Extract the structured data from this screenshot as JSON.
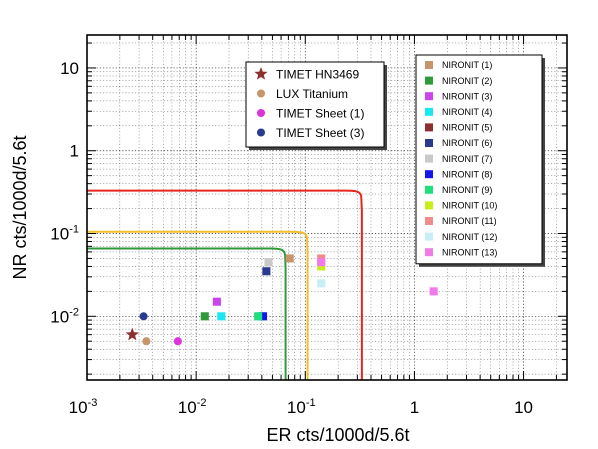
{
  "chart_data": {
    "type": "scatter",
    "xlabel": "ER cts/1000d/5.6t",
    "ylabel": "NR cts/1000d/5.6t",
    "xscale": "log",
    "yscale": "log",
    "xlim": [
      0.001,
      25
    ],
    "ylim": [
      0.0017,
      25
    ],
    "grid": true,
    "x_ticks": [
      {
        "base": "10",
        "exp": "-3"
      },
      {
        "base": "10",
        "exp": "-2"
      },
      {
        "base": "10",
        "exp": "-1"
      },
      {
        "base": "1",
        "exp": ""
      },
      {
        "base": "10",
        "exp": ""
      }
    ],
    "y_ticks": [
      {
        "base": "10",
        "exp": "-2"
      },
      {
        "base": "10",
        "exp": "-1"
      },
      {
        "base": "1",
        "exp": ""
      },
      {
        "base": "10",
        "exp": ""
      }
    ],
    "legend_left": {
      "placement": "top-center",
      "entries": [
        {
          "label": "TIMET HN3469",
          "marker": "star",
          "color": "#8b2f2f"
        },
        {
          "label": "LUX Titanium",
          "marker": "circle",
          "color": "#c8946a"
        },
        {
          "label": "TIMET Sheet (1)",
          "marker": "circle",
          "color": "#dd33dd"
        },
        {
          "label": "TIMET Sheet (3)",
          "marker": "circle",
          "color": "#2a3a8f"
        }
      ]
    },
    "legend_right": {
      "placement": "top-right",
      "entries": [
        {
          "label": "NIRONIT (1)",
          "color": "#c8946a"
        },
        {
          "label": "NIRONIT (2)",
          "color": "#2e9a3a"
        },
        {
          "label": "NIRONIT (3)",
          "color": "#cc44ee"
        },
        {
          "label": "NIRONIT (4)",
          "color": "#19e8f0"
        },
        {
          "label": "NIRONIT (5)",
          "color": "#8b2f2f"
        },
        {
          "label": "NIRONIT (6)",
          "color": "#2a3a8f"
        },
        {
          "label": "NIRONIT (7)",
          "color": "#c9c9c9"
        },
        {
          "label": "NIRONIT (8)",
          "color": "#1515ee"
        },
        {
          "label": "NIRONIT (9)",
          "color": "#1fe07a"
        },
        {
          "label": "NIRONIT (10)",
          "color": "#c8ee1a"
        },
        {
          "label": "NIRONIT (11)",
          "color": "#f08c8c"
        },
        {
          "label": "NIRONIT (12)",
          "color": "#c7eef5"
        },
        {
          "label": "NIRONIT (13)",
          "color": "#f07ae8"
        }
      ]
    },
    "series": [
      {
        "name": "TIMET HN3469",
        "marker": "star",
        "color": "#8b2f2f",
        "points": [
          [
            0.0026,
            0.006
          ]
        ]
      },
      {
        "name": "LUX Titanium",
        "marker": "circle",
        "color": "#c8946a",
        "points": [
          [
            0.0035,
            0.005
          ]
        ]
      },
      {
        "name": "TIMET Sheet (1)",
        "marker": "circle",
        "color": "#dd33dd",
        "points": [
          [
            0.0068,
            0.005
          ]
        ]
      },
      {
        "name": "TIMET Sheet (3)",
        "marker": "circle",
        "color": "#2a3a8f",
        "points": [
          [
            0.0033,
            0.01
          ]
        ]
      },
      {
        "name": "NIRONIT (1)",
        "marker": "square",
        "color": "#c8946a",
        "points": [
          [
            0.072,
            0.05
          ]
        ]
      },
      {
        "name": "NIRONIT (2)",
        "marker": "square",
        "color": "#2e9a3a",
        "points": [
          [
            0.012,
            0.01
          ]
        ]
      },
      {
        "name": "NIRONIT (3)",
        "marker": "square",
        "color": "#cc44ee",
        "points": [
          [
            0.0155,
            0.015
          ]
        ]
      },
      {
        "name": "NIRONIT (4)",
        "marker": "square",
        "color": "#19e8f0",
        "points": [
          [
            0.017,
            0.01
          ],
          [
            0.039,
            0.01
          ]
        ]
      },
      {
        "name": "NIRONIT (6)",
        "marker": "square",
        "color": "#2a3a8f",
        "points": [
          [
            0.044,
            0.035
          ]
        ]
      },
      {
        "name": "NIRONIT (7)",
        "marker": "square",
        "color": "#c9c9c9",
        "points": [
          [
            0.046,
            0.045
          ]
        ]
      },
      {
        "name": "NIRONIT (8)",
        "marker": "square",
        "color": "#1515ee",
        "points": [
          [
            0.041,
            0.01
          ]
        ]
      },
      {
        "name": "NIRONIT (9)",
        "marker": "square",
        "color": "#1fe07a",
        "points": [
          [
            0.037,
            0.01
          ]
        ]
      },
      {
        "name": "NIRONIT (10)",
        "marker": "square",
        "color": "#c8ee1a",
        "points": [
          [
            0.14,
            0.04
          ]
        ]
      },
      {
        "name": "NIRONIT (11)",
        "marker": "square",
        "color": "#f08c8c",
        "points": [
          [
            0.14,
            0.05
          ]
        ]
      },
      {
        "name": "NIRONIT (12)",
        "marker": "square",
        "color": "#c7eef5",
        "points": [
          [
            0.14,
            0.025
          ]
        ]
      },
      {
        "name": "NIRONIT (13)",
        "marker": "square",
        "color": "#f07ae8",
        "points": [
          [
            0.14,
            0.045
          ],
          [
            1.5,
            0.02
          ]
        ]
      }
    ],
    "curves": [
      {
        "color": "#e8251e",
        "plateau_y": 0.33,
        "limit_x": 0.33,
        "knee": 0.88
      },
      {
        "color": "#f2c02a",
        "plateau_y": 0.105,
        "limit_x": 0.105,
        "knee": 0.88
      },
      {
        "color": "#2e9a3a",
        "plateau_y": 0.066,
        "limit_x": 0.066,
        "knee": 0.88
      }
    ]
  }
}
